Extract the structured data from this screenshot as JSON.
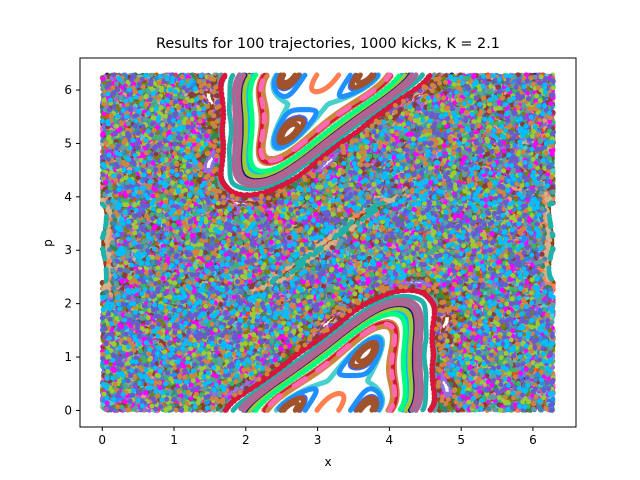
{
  "chart_data": {
    "type": "scatter",
    "title": "Results for 100 trajectories, 1000 kicks, K = 2.1",
    "xlabel": "x",
    "ylabel": "p",
    "xlim": [
      -0.31,
      6.6
    ],
    "ylim": [
      -0.31,
      6.6
    ],
    "xticks": [
      0,
      1,
      2,
      3,
      4,
      5,
      6
    ],
    "yticks": [
      0,
      1,
      2,
      3,
      4,
      5,
      6
    ],
    "grid": false,
    "legend": "none",
    "map": {
      "K": 2.1,
      "trajectories": 100,
      "kicks": 1000,
      "period": 6.283185
    },
    "point_marker": "filled circle",
    "palette": [
      "#8b3a3a",
      "#b5628e",
      "#4682b4",
      "#3cb371",
      "#ff00ff",
      "#5f9ea0",
      "#9acd32",
      "#cd853f",
      "#6a5acd",
      "#00bfff",
      "#ff7f50",
      "#7b68ee",
      "#556b2f",
      "#d2b48c",
      "#191970",
      "#ff4500",
      "#20b2aa",
      "#8b4513",
      "#00ff7f",
      "#ba55d3",
      "#4169e1",
      "#e9967a",
      "#2e8b57",
      "#dc143c",
      "#48d1cc",
      "#9370db",
      "#808000",
      "#ff69b4",
      "#1e90ff",
      "#a0522d"
    ]
  }
}
